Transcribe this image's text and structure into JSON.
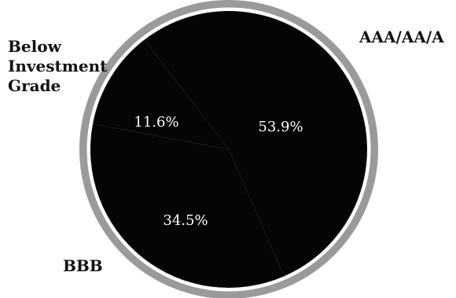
{
  "chart_data": {
    "type": "pie",
    "title": "",
    "categories": [
      "AAA/AA/A",
      "BBB",
      "Below\nInvestment\nGrade"
    ],
    "values": [
      53.9,
      34.5,
      11.6
    ],
    "data_labels": [
      "53.9%",
      "34.5%",
      "11.6%"
    ],
    "legend": "none",
    "grid": false
  },
  "colors": {
    "slice_fill": "#050505",
    "ring": "#9a9a9a",
    "label_text": "#ffffff",
    "category_text": "#111111"
  }
}
